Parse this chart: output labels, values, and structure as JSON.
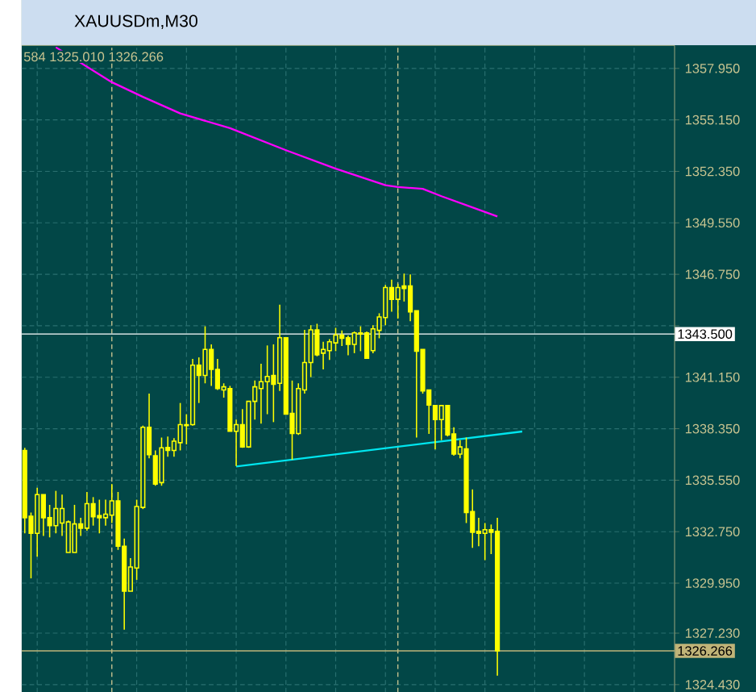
{
  "chart_data": {
    "type": "candlestick",
    "title": "XAUUSDm,M30",
    "annotations": [
      "584 1325.010 1326.266"
    ],
    "categories": [
      null,
      null,
      null,
      null,
      null,
      null,
      null,
      null,
      null,
      null,
      null,
      null,
      null,
      null,
      null,
      null,
      null,
      null,
      null,
      null,
      null,
      null,
      null,
      null,
      null,
      null,
      null,
      null,
      null,
      null,
      null,
      null,
      null,
      null,
      null,
      null,
      null,
      null,
      null,
      null,
      null,
      null,
      null,
      null,
      null,
      null,
      null,
      null,
      null,
      null,
      null,
      null,
      null,
      null,
      null,
      null,
      null,
      null,
      null,
      null,
      null,
      null,
      null,
      null,
      null,
      null,
      null,
      null,
      null,
      null,
      null,
      null,
      null,
      null,
      null,
      null,
      null,
      null,
      null,
      null,
      null,
      null,
      null,
      null,
      null,
      null,
      null,
      null,
      null,
      null,
      null,
      null,
      null,
      null,
      null,
      null,
      null,
      null,
      null,
      null,
      null,
      null,
      null,
      null,
      null
    ],
    "color": "#ffff00",
    "ohlc": [
      [
        1337.17,
        1337.31,
        1332.66,
        1333.51
      ],
      [
        1333.59,
        1333.79,
        1330.21,
        1332.66
      ],
      [
        1332.66,
        1335.14,
        1331.39,
        1334.77
      ],
      [
        1334.77,
        1334.77,
        1332.52,
        1333.51
      ],
      [
        1333.51,
        1334.21,
        1332.44,
        1333.08
      ],
      [
        1333.08,
        1334.97,
        1332.66,
        1334.01
      ],
      [
        1333.22,
        1334.77,
        1332.52,
        1334.01
      ],
      [
        1331.62,
        1333.36,
        1331.62,
        1333.28
      ],
      [
        1331.62,
        1334.21,
        1331.62,
        1333.17
      ],
      [
        1333.17,
        1333.51,
        1332.52,
        1332.94
      ],
      [
        1332.94,
        1334.91,
        1332.8,
        1334.27
      ],
      [
        1334.27,
        1334.63,
        1333.08,
        1333.56
      ],
      [
        1333.62,
        1334.49,
        1332.66,
        1333.51
      ],
      [
        1333.51,
        1334.49,
        1333.08,
        1333.7
      ],
      [
        1333.65,
        1335.34,
        1333.22,
        1334.43
      ],
      [
        1334.43,
        1334.91,
        1331.76,
        1331.96
      ],
      [
        1331.96,
        1332.38,
        1327.42,
        1329.51
      ],
      [
        1329.51,
        1331.31,
        1329.51,
        1330.83
      ],
      [
        1330.77,
        1334.49,
        1330.13,
        1334.12
      ],
      [
        1334.07,
        1338.52,
        1333.98,
        1338.43
      ],
      [
        1338.43,
        1340.26,
        1336.74,
        1336.94
      ],
      [
        1336.88,
        1337.17,
        1335.25,
        1335.34
      ],
      [
        1335.42,
        1337.87,
        1335.25,
        1337.31
      ],
      [
        1337.33,
        1337.93,
        1336.83,
        1337.17
      ],
      [
        1337.17,
        1337.84,
        1336.83,
        1337.67
      ],
      [
        1337.59,
        1339.75,
        1337.17,
        1338.57
      ],
      [
        1338.57,
        1339.14,
        1337.5,
        1338.52
      ],
      [
        1338.57,
        1342.15,
        1338.52,
        1341.81
      ],
      [
        1341.81,
        1342.23,
        1339.75,
        1341.25
      ],
      [
        1341.25,
        1343.92,
        1340.82,
        1342.66
      ],
      [
        1342.66,
        1342.94,
        1340.68,
        1341.58
      ],
      [
        1341.58,
        1342.15,
        1340.46,
        1340.54
      ],
      [
        1340.46,
        1340.82,
        1340.04,
        1340.63
      ],
      [
        1340.54,
        1340.68,
        1338.21,
        1338.21
      ],
      [
        1338.21,
        1338.85,
        1336.32,
        1338.57
      ],
      [
        1338.57,
        1339.42,
        1337.31,
        1337.36
      ],
      [
        1337.36,
        1339.84,
        1337.31,
        1339.84
      ],
      [
        1339.84,
        1340.97,
        1338.85,
        1340.63
      ],
      [
        1340.54,
        1341.89,
        1338.63,
        1340.91
      ],
      [
        1340.91,
        1342.88,
        1339.14,
        1341.19
      ],
      [
        1341.25,
        1342.94,
        1338.71,
        1340.77
      ],
      [
        1340.82,
        1345.1,
        1340.4,
        1343.3
      ],
      [
        1343.3,
        1343.3,
        1339.14,
        1339.14
      ],
      [
        1339.19,
        1340.97,
        1336.66,
        1338.09
      ],
      [
        1338.09,
        1340.82,
        1338.01,
        1340.54
      ],
      [
        1340.46,
        1343.73,
        1340.26,
        1341.95
      ],
      [
        1341.95,
        1343.98,
        1341.16,
        1343.73
      ],
      [
        1343.73,
        1344.06,
        1342.29,
        1342.37
      ],
      [
        1342.46,
        1343.08,
        1341.58,
        1342.66
      ],
      [
        1342.6,
        1343.22,
        1342.09,
        1343.08
      ],
      [
        1343.02,
        1343.84,
        1342.57,
        1343.44
      ],
      [
        1343.44,
        1343.7,
        1342.85,
        1343.27
      ],
      [
        1343.3,
        1343.42,
        1342.35,
        1342.94
      ],
      [
        1342.94,
        1343.64,
        1342.46,
        1343.56
      ],
      [
        1343.56,
        1343.92,
        1342.57,
        1343.5
      ],
      [
        1343.56,
        1343.64,
        1342.18,
        1342.18
      ],
      [
        1342.6,
        1343.98,
        1342.46,
        1343.78
      ],
      [
        1343.7,
        1344.63,
        1343.27,
        1344.43
      ],
      [
        1344.4,
        1346.17,
        1343.98,
        1346.03
      ],
      [
        1346.03,
        1346.46,
        1344.71,
        1345.39
      ],
      [
        1345.39,
        1346.23,
        1344.34,
        1346.03
      ],
      [
        1346.12,
        1346.79,
        1345.27,
        1345.98
      ],
      [
        1346.12,
        1346.74,
        1344.2,
        1344.71
      ],
      [
        1344.77,
        1344.77,
        1337.87,
        1342.57
      ],
      [
        1342.66,
        1342.66,
        1340.26,
        1340.4
      ],
      [
        1340.46,
        1340.46,
        1338.07,
        1339.64
      ],
      [
        1339.61,
        1339.61,
        1337.22,
        1338.85
      ],
      [
        1338.85,
        1339.61,
        1337.73,
        1339.61
      ],
      [
        1339.61,
        1339.61,
        1337.93,
        1338.01
      ],
      [
        1338.07,
        1338.43,
        1336.88,
        1336.97
      ],
      [
        1336.97,
        1337.73,
        1336.74,
        1337.36
      ],
      [
        1337.25,
        1337.87,
        1333.22,
        1333.79
      ],
      [
        1333.84,
        1335.05,
        1331.87,
        1332.72
      ],
      [
        1332.77,
        1333.51,
        1331.96,
        1332.66
      ],
      [
        1332.66,
        1333.22,
        1331.2,
        1332.86
      ],
      [
        1332.86,
        1333.14,
        1331.53,
        1332.72
      ],
      [
        1332.77,
        1333.51,
        1324.92,
        1326.266
      ],
      null,
      null,
      null,
      null,
      null,
      null,
      null,
      null,
      null,
      null,
      null,
      null,
      null,
      null,
      null,
      null,
      null,
      null,
      null,
      null,
      null,
      null,
      null,
      null,
      null,
      null,
      null,
      null
    ],
    "series": [
      {
        "type": "line",
        "color": "#ff00ff",
        "values": [
          null,
          null,
          null,
          null,
          null,
          1359.1,
          null,
          null,
          null,
          null,
          null,
          null,
          null,
          null,
          1357.2,
          null,
          null,
          null,
          null,
          1356.4,
          null,
          null,
          null,
          null,
          null,
          1355.5,
          null,
          null,
          null,
          null,
          null,
          null,
          null,
          1354.7,
          null,
          null,
          null,
          null,
          null,
          null,
          null,
          null,
          1353.5,
          null,
          null,
          null,
          null,
          null,
          null,
          null,
          1352.5,
          null,
          null,
          null,
          null,
          null,
          null,
          null,
          1351.6,
          null,
          1351.5,
          null,
          null,
          null,
          1351.4,
          null,
          null,
          1351.0,
          null,
          null,
          null,
          null,
          null,
          null,
          null,
          null,
          1349.9,
          null,
          null,
          null,
          null,
          null,
          null,
          null,
          null,
          null,
          null,
          null,
          null,
          null,
          null,
          null,
          null,
          null,
          null,
          null,
          null,
          null,
          null,
          null,
          null,
          null,
          null,
          null,
          null
        ]
      },
      {
        "type": "line",
        "color": "#00e5ee",
        "values": [
          null,
          null,
          null,
          null,
          null,
          null,
          null,
          null,
          null,
          null,
          null,
          null,
          null,
          null,
          null,
          null,
          null,
          null,
          null,
          null,
          null,
          null,
          null,
          null,
          null,
          null,
          null,
          null,
          null,
          null,
          null,
          null,
          null,
          null,
          1336.3,
          null,
          null,
          null,
          null,
          null,
          null,
          null,
          null,
          null,
          null,
          null,
          null,
          null,
          null,
          null,
          null,
          null,
          null,
          null,
          null,
          null,
          null,
          null,
          null,
          null,
          null,
          null,
          null,
          null,
          null,
          null,
          null,
          null,
          null,
          null,
          null,
          null,
          null,
          null,
          null,
          null,
          null,
          null,
          null,
          null,
          1338.2,
          null,
          null,
          null,
          null,
          null,
          null,
          null,
          null,
          null,
          null,
          null,
          null,
          null,
          null,
          null,
          null,
          null,
          null,
          null,
          null,
          null,
          null,
          null,
          null
        ]
      }
    ],
    "ylim": [
      1324.0,
      1359.2
    ],
    "yticks": [
      {
        "value": 1357.95,
        "label": "1357.950"
      },
      {
        "value": 1355.15,
        "label": "1355.150"
      },
      {
        "value": 1352.35,
        "label": "1352.350"
      },
      {
        "value": 1349.55,
        "label": "1349.550"
      },
      {
        "value": 1346.75,
        "label": "1346.750"
      },
      {
        "value": 1343.95,
        "label": null
      },
      {
        "value": 1341.15,
        "label": "1341.150"
      },
      {
        "value": 1338.35,
        "label": "1338.350"
      },
      {
        "value": 1335.55,
        "label": "1335.550"
      },
      {
        "value": 1332.75,
        "label": "1332.750"
      },
      {
        "value": 1329.95,
        "label": "1329.950"
      },
      {
        "value": 1327.23,
        "label": "1327.230"
      },
      {
        "value": 1324.43,
        "label": "1324.430"
      }
    ],
    "tick_labels": "y",
    "grid": true,
    "ref_lines": [
      {
        "axis": "y",
        "value": 1343.5,
        "label": "1343.500",
        "color": "#ffffff"
      },
      {
        "axis": "y",
        "value": 1326.266,
        "label": "1326.266",
        "color": "#c0b478"
      }
    ]
  }
}
